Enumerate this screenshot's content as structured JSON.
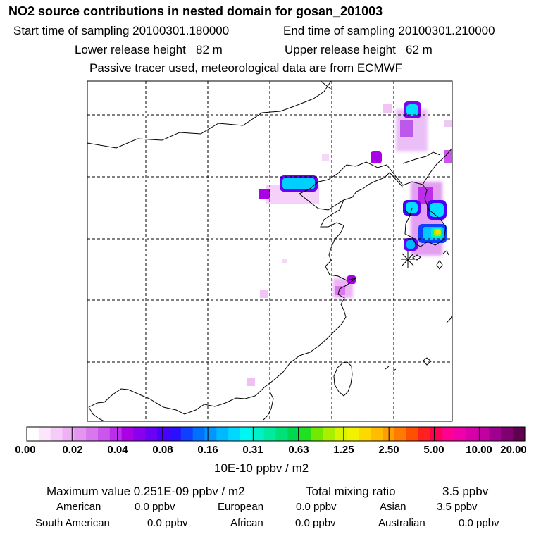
{
  "header": {
    "title": "NO2 source contributions in nested domain for gosan_201003",
    "start_label": "Start time of sampling 20100301.180000",
    "end_label": "End time of sampling 20100301.210000",
    "lower_label": "Lower release height   82 m",
    "upper_label": "Upper release height   62 m",
    "note": "Passive tracer used, meteorological data are from ECMWF"
  },
  "colorbar": {
    "unit": "10E-10 ppbv / m2",
    "labels": [
      "0.00",
      "0.02",
      "0.04",
      "0.08",
      "0.16",
      "0.31",
      "0.63",
      "1.25",
      "2.50",
      "5.00",
      "10.00",
      "20.00"
    ],
    "colors": [
      "#ffffff",
      "#fbe6fb",
      "#f5ccf7",
      "#efb0f4",
      "#e494f1",
      "#d877ee",
      "#cc55ec",
      "#bd2eea",
      "#aa00e6",
      "#8800ee",
      "#6a00f4",
      "#4a00fa",
      "#2a10ff",
      "#1040ff",
      "#0070ff",
      "#0095ff",
      "#00b8ff",
      "#00d8ff",
      "#00f6f0",
      "#00f0c8",
      "#00eaa0",
      "#00e278",
      "#00d850",
      "#20e020",
      "#70ea00",
      "#a8f000",
      "#d8f400",
      "#f2f200",
      "#ffd800",
      "#ffbc00",
      "#ff9e00",
      "#ff7a00",
      "#ff5000",
      "#ff2020",
      "#ff0050",
      "#ff0090",
      "#f000a8",
      "#d800a8",
      "#c000a0",
      "#a00090",
      "#800070",
      "#600050"
    ]
  },
  "summary": {
    "max_label": "Maximum value  0.251E-09 ppbv / m2",
    "total_label": "Total mixing ratio",
    "total_value": "3.5 ppbv",
    "regions": [
      {
        "name": "American",
        "value": "0.0 ppbv"
      },
      {
        "name": "European",
        "value": "0.0 ppbv"
      },
      {
        "name": "Asian",
        "value": "3.5 ppbv"
      },
      {
        "name": "South American",
        "value": "0.0 ppbv"
      },
      {
        "name": "African",
        "value": "0.0 ppbv"
      },
      {
        "name": "Australian",
        "value": "0.0 ppbv"
      }
    ]
  },
  "colors": {
    "grid": "#000000",
    "coast": "#000000",
    "receptor": "#000000"
  }
}
